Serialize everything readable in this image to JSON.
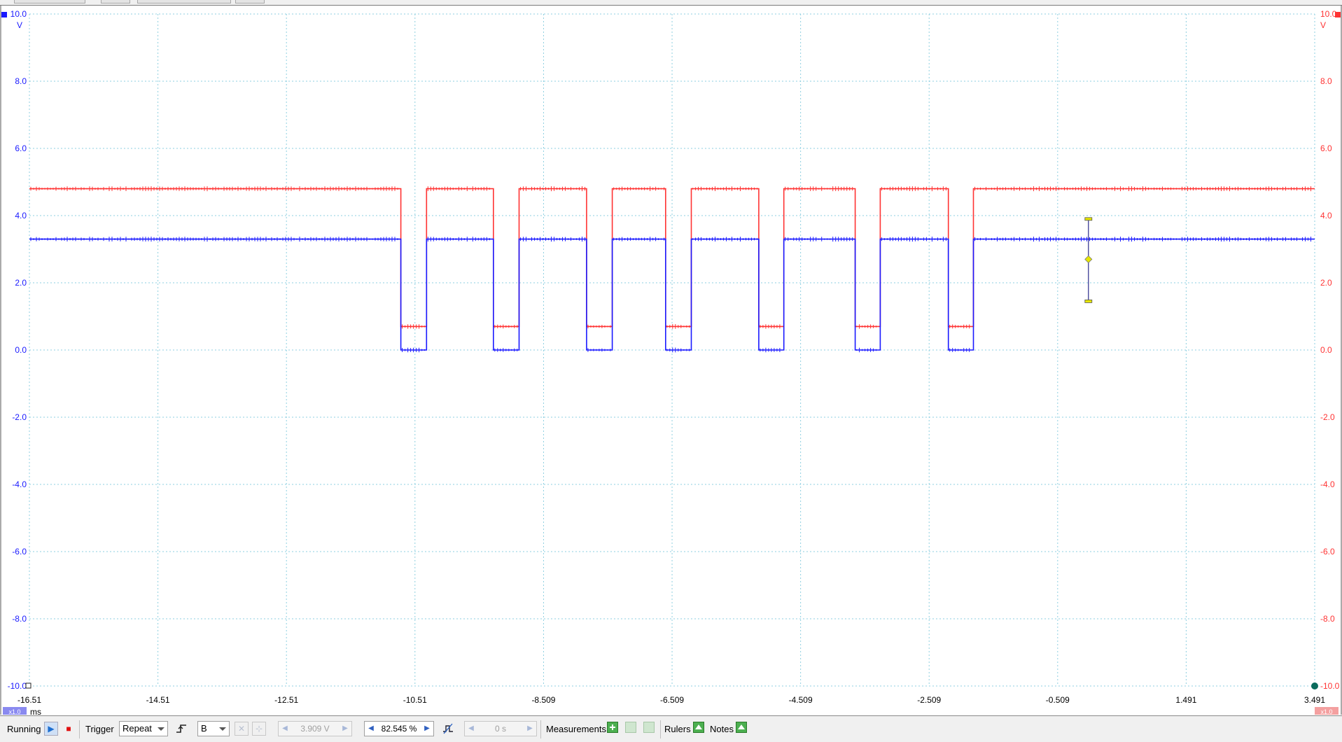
{
  "scope": {
    "left_axis": {
      "ticks": [
        "10.0",
        "8.0",
        "6.0",
        "4.0",
        "2.0",
        "0.0",
        "-2.0",
        "-4.0",
        "-6.0",
        "-8.0",
        "-10.0"
      ],
      "unit": "V",
      "color": "#1a1aff",
      "scale_badge": "x1.0"
    },
    "right_axis": {
      "ticks": [
        "10.0",
        "8.0",
        "6.0",
        "4.0",
        "2.0",
        "0.0",
        "-2.0",
        "-4.0",
        "-6.0",
        "-8.0",
        "-10.0"
      ],
      "unit": "V",
      "color": "#ff3333",
      "scale_badge": "x1.0"
    },
    "x_axis": {
      "ticks": [
        "-16.51",
        "-14.51",
        "-12.51",
        "-10.51",
        "-8.509",
        "-6.509",
        "-4.509",
        "-2.509",
        "-0.509",
        "1.491",
        "3.491"
      ],
      "unit": "ms"
    }
  },
  "chart_data": {
    "type": "line",
    "x_unit": "ms",
    "y_unit": "V",
    "xlim": [
      -16.51,
      3.491
    ],
    "ylim": [
      -10,
      10
    ],
    "grid": true,
    "series": [
      {
        "name": "A",
        "color": "#ff3333",
        "high": 4.8,
        "low": 0.7,
        "segments": [
          {
            "level": "high",
            "from": -16.51,
            "to": -10.73
          },
          {
            "level": "low",
            "from": -10.73,
            "to": -10.33
          },
          {
            "level": "high",
            "from": -10.33,
            "to": -9.29
          },
          {
            "level": "low",
            "from": -9.29,
            "to": -8.89
          },
          {
            "level": "high",
            "from": -8.89,
            "to": -7.84
          },
          {
            "level": "low",
            "from": -7.84,
            "to": -7.44
          },
          {
            "level": "high",
            "from": -7.44,
            "to": -6.61
          },
          {
            "level": "low",
            "from": -6.61,
            "to": -6.21
          },
          {
            "level": "high",
            "from": -6.21,
            "to": -5.16
          },
          {
            "level": "low",
            "from": -5.16,
            "to": -4.77
          },
          {
            "level": "high",
            "from": -4.77,
            "to": -3.66
          },
          {
            "level": "low",
            "from": -3.66,
            "to": -3.27
          },
          {
            "level": "high",
            "from": -3.27,
            "to": -2.21
          },
          {
            "level": "low",
            "from": -2.21,
            "to": -1.82
          },
          {
            "level": "high",
            "from": -1.82,
            "to": 3.491
          }
        ]
      },
      {
        "name": "B",
        "color": "#1a1aff",
        "high": 3.3,
        "low": 0.0,
        "segments": [
          {
            "level": "high",
            "from": -16.51,
            "to": -10.73
          },
          {
            "level": "low",
            "from": -10.73,
            "to": -10.33
          },
          {
            "level": "high",
            "from": -10.33,
            "to": -9.29
          },
          {
            "level": "low",
            "from": -9.29,
            "to": -8.89
          },
          {
            "level": "high",
            "from": -8.89,
            "to": -7.84
          },
          {
            "level": "low",
            "from": -7.84,
            "to": -7.44
          },
          {
            "level": "high",
            "from": -7.44,
            "to": -6.61
          },
          {
            "level": "low",
            "from": -6.61,
            "to": -6.21
          },
          {
            "level": "high",
            "from": -6.21,
            "to": -5.16
          },
          {
            "level": "low",
            "from": -5.16,
            "to": -4.77
          },
          {
            "level": "high",
            "from": -4.77,
            "to": -3.66
          },
          {
            "level": "low",
            "from": -3.66,
            "to": -3.27
          },
          {
            "level": "high",
            "from": -3.27,
            "to": -2.21
          },
          {
            "level": "low",
            "from": -2.21,
            "to": -1.82
          },
          {
            "level": "high",
            "from": -1.82,
            "to": 3.491
          }
        ]
      }
    ],
    "trigger_marker": {
      "time": -0.03,
      "level": 2.7,
      "top": 3.9,
      "bottom": 1.45,
      "color": "#e6e600"
    }
  },
  "toolbar": {
    "running_label": "Running",
    "trigger_label": "Trigger",
    "trigger_mode": "Repeat",
    "trigger_source": "B",
    "threshold_value": "3.909 V",
    "pretrigger_value": "82.545 %",
    "delay_value": "0 s",
    "measurements_label": "Measurements",
    "rulers_label": "Rulers",
    "notes_label": "Notes"
  },
  "icons": {
    "play": "play-icon",
    "stop": "stop-icon",
    "edge": "rising-edge-icon",
    "add": "add-icon",
    "edit": "edit-icon"
  }
}
